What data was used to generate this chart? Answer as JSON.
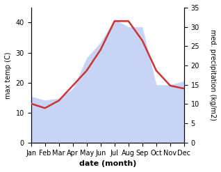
{
  "months": [
    "Jan",
    "Feb",
    "Mar",
    "Apr",
    "May",
    "Jun",
    "Jul",
    "Aug",
    "Sep",
    "Oct",
    "Nov",
    "Dec"
  ],
  "x": [
    1,
    2,
    3,
    4,
    5,
    6,
    7,
    8,
    9,
    10,
    11,
    12
  ],
  "temp": [
    13,
    11.5,
    14,
    19,
    24,
    31,
    40.5,
    40.5,
    34,
    24,
    19,
    18
  ],
  "precip": [
    12,
    11,
    11.5,
    14,
    22,
    26,
    32,
    30,
    30,
    15,
    15,
    16
  ],
  "temp_color": "#cc3333",
  "precip_fill_color": "#c8d4f5",
  "left_ylim": [
    0,
    45
  ],
  "right_ylim": [
    0,
    35
  ],
  "left_yticks": [
    0,
    10,
    20,
    30,
    40
  ],
  "right_yticks": [
    0,
    5,
    10,
    15,
    20,
    25,
    30,
    35
  ],
  "xlabel": "date (month)",
  "ylabel_left": "max temp (C)",
  "ylabel_right": "med. precipitation (kg/m2)",
  "bg_color": "#ffffff",
  "temp_linewidth": 1.8,
  "xlabel_fontsize": 8,
  "ylabel_fontsize": 7,
  "tick_fontsize": 7
}
